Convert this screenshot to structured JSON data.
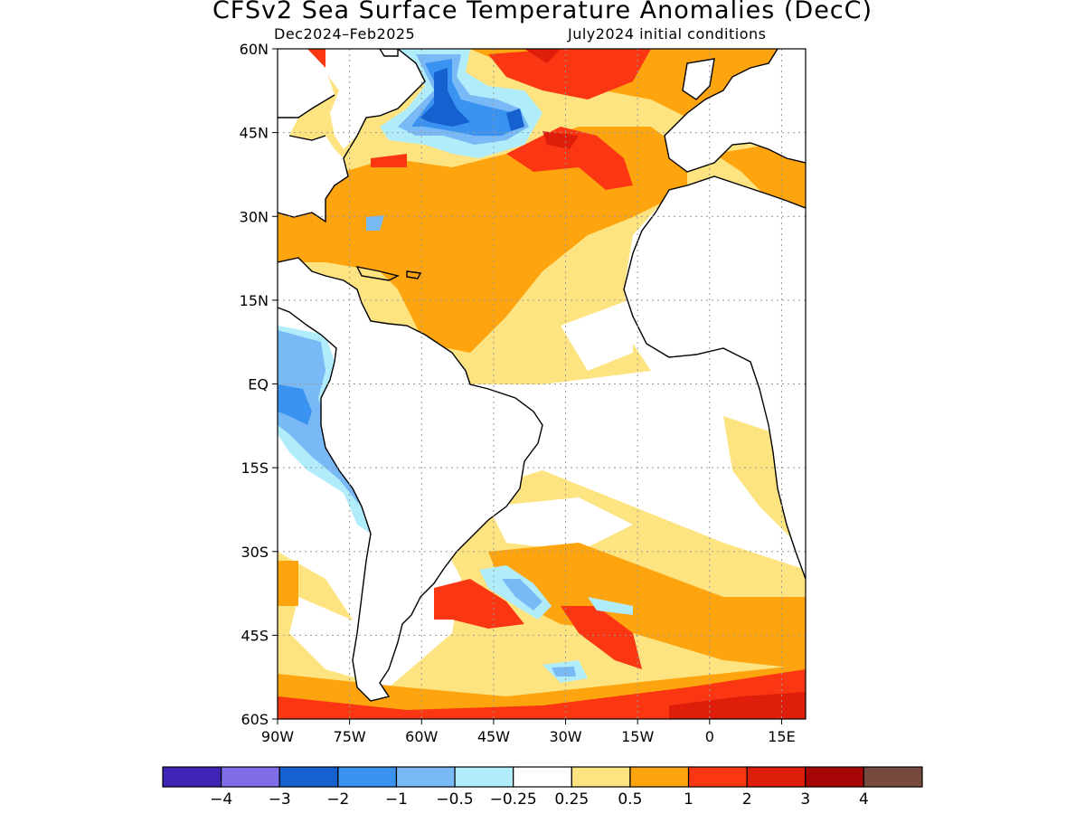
{
  "title": "CFSv2 Sea Surface Temperature Anomalies (DecC)",
  "subtitle_left": "Dec2024–Feb2025",
  "subtitle_right": "July2024 initial conditions",
  "map": {
    "projection": "equirectangular",
    "lon_range": [
      -90,
      20
    ],
    "lat_range": [
      -60,
      60
    ],
    "grid": "dotted",
    "lat_ticks": [
      {
        "value": 60,
        "label": "60N"
      },
      {
        "value": 45,
        "label": "45N"
      },
      {
        "value": 30,
        "label": "30N"
      },
      {
        "value": 15,
        "label": "15N"
      },
      {
        "value": 0,
        "label": "EQ"
      },
      {
        "value": -15,
        "label": "15S"
      },
      {
        "value": -30,
        "label": "30S"
      },
      {
        "value": -45,
        "label": "45S"
      },
      {
        "value": -60,
        "label": "60S"
      }
    ],
    "lon_ticks": [
      {
        "value": -90,
        "label": "90W"
      },
      {
        "value": -75,
        "label": "75W"
      },
      {
        "value": -60,
        "label": "60W"
      },
      {
        "value": -45,
        "label": "45W"
      },
      {
        "value": -30,
        "label": "30W"
      },
      {
        "value": -15,
        "label": "15W"
      },
      {
        "value": 0,
        "label": "0"
      },
      {
        "value": 15,
        "label": "15E"
      }
    ]
  },
  "colorbar": {
    "colors": [
      "#3f23b5",
      "#7f6de8",
      "#1561d0",
      "#3a93f0",
      "#78b9f6",
      "#b1ecfb",
      "#ffffff",
      "#fee481",
      "#fda40f",
      "#fa3712",
      "#de1e0b",
      "#a50505",
      "#764a3c"
    ],
    "labels": [
      "−4",
      "−3",
      "−2",
      "−1",
      "−0.5",
      "−0.25",
      "0.25",
      "0.5",
      "1",
      "2",
      "3",
      "4"
    ]
  }
}
